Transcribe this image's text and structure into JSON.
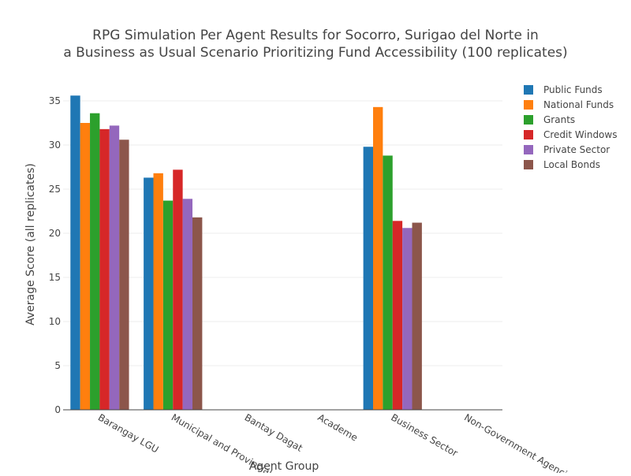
{
  "chart_data": {
    "type": "bar",
    "title": "RPG Simulation Per Agent Results for Socorro, Surigao del Norte in",
    "subtitle": "a Business as Usual Scenario Prioritizing Fund Accessibility (100 replicates)",
    "xlabel": "Agent Group",
    "ylabel": "Average Score (all replicates)",
    "ylim": [
      0,
      37.5
    ],
    "yticks": [
      0,
      5,
      10,
      15,
      20,
      25,
      30,
      35
    ],
    "grid": true,
    "legend_position": "top-right",
    "categories": [
      "Barangay LGU",
      "Municipal and Provincial...",
      "Bantay Dagat",
      "Academe",
      "Business Sector",
      "Non-Government Agencies"
    ],
    "series": [
      {
        "name": "Public Funds",
        "color": "#1f77b4",
        "values": [
          35.6,
          26.3,
          0,
          0,
          29.8,
          0
        ]
      },
      {
        "name": "National Funds",
        "color": "#ff7f0e",
        "values": [
          32.5,
          26.8,
          0,
          0,
          34.3,
          0
        ]
      },
      {
        "name": "Grants",
        "color": "#2ca02c",
        "values": [
          33.6,
          23.7,
          0,
          0,
          28.8,
          0
        ]
      },
      {
        "name": "Credit Windows",
        "color": "#d62728",
        "values": [
          31.8,
          27.2,
          0,
          0,
          21.4,
          0
        ]
      },
      {
        "name": "Private Sector",
        "color": "#9467bd",
        "values": [
          32.2,
          23.9,
          0,
          0,
          20.6,
          0
        ]
      },
      {
        "name": "Local Bonds",
        "color": "#8c564b",
        "values": [
          30.6,
          21.8,
          0,
          0,
          21.2,
          0
        ]
      }
    ]
  }
}
